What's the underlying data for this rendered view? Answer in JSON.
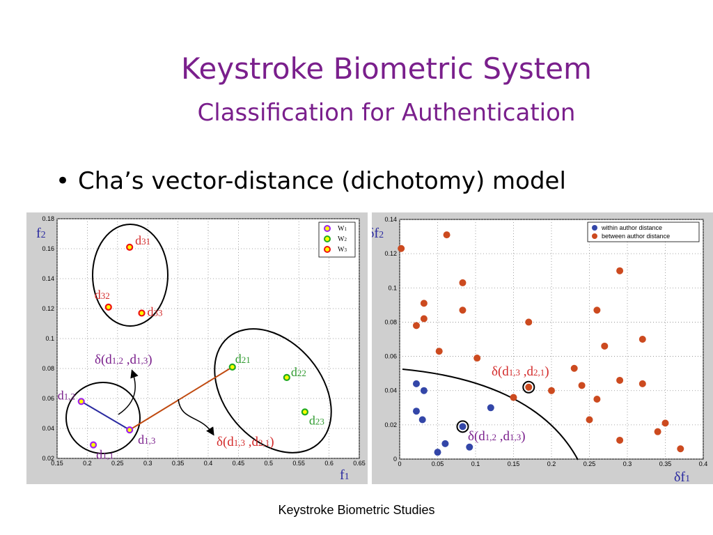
{
  "slide": {
    "title": "Keystroke Biometric System",
    "subtitle": "Classification for Authentication",
    "bullet": "Cha’s vector-distance (dichotomy) model",
    "footer": "Keystroke Biometric Studies"
  },
  "colors": {
    "title": "#7a1f8c",
    "w1_edge": "#a020f0",
    "w2_edge": "#22aa22",
    "w3_edge": "#ee1111",
    "marker_fill": "#ffff00",
    "within": "#3346a8",
    "between": "#cc4a1f",
    "label_purple": "#7a1f8c",
    "label_red": "#d32a2a",
    "label_green": "#2f9a2f",
    "link_blue": "#2a2aa0",
    "link_orange": "#c04a10"
  },
  "chart_data": [
    {
      "type": "scatter",
      "xlabel": "f1",
      "ylabel": "f2",
      "xlim": [
        0.15,
        0.65
      ],
      "ylim": [
        0.02,
        0.18
      ],
      "xticks": [
        "0.15",
        "0.2",
        "0.25",
        "0.3",
        "0.35",
        "0.4",
        "0.45",
        "0.5",
        "0.55",
        "0.6",
        "0.65"
      ],
      "yticks": [
        "0.02",
        "0.04",
        "0.06",
        "0.08",
        "0.1",
        "0.12",
        "0.14",
        "0.16",
        "0.18"
      ],
      "grid": true,
      "legend": "top-right",
      "series": [
        {
          "name": "W1",
          "color_key": "w1_edge",
          "points": [
            [
              0.19,
              0.058
            ],
            [
              0.21,
              0.029
            ],
            [
              0.27,
              0.039
            ]
          ],
          "labels": [
            "d1,2",
            "d1,1",
            "d1,3"
          ]
        },
        {
          "name": "W2",
          "color_key": "w2_edge",
          "points": [
            [
              0.44,
              0.081
            ],
            [
              0.53,
              0.074
            ],
            [
              0.56,
              0.051
            ]
          ],
          "labels": [
            "d21",
            "d22",
            "d23"
          ]
        },
        {
          "name": "W3",
          "color_key": "w3_edge",
          "points": [
            [
              0.27,
              0.161
            ],
            [
              0.235,
              0.121
            ],
            [
              0.29,
              0.117
            ]
          ],
          "labels": [
            "d31",
            "d32",
            "d33"
          ]
        }
      ],
      "annotations": [
        {
          "text": "δ(d1,2 ,d1,3)",
          "parts": [
            [
              "δ(d",
              ""
            ],
            [
              "1,2",
              "sub"
            ],
            [
              " ,d",
              ""
            ],
            [
              "1,3",
              "sub"
            ],
            [
              ")",
              ""
            ]
          ]
        },
        {
          "text": "δ(d1,3 ,d2,1)",
          "parts": [
            [
              "δ(d",
              ""
            ],
            [
              "1,3",
              "sub"
            ],
            [
              " ,d",
              ""
            ],
            [
              "2,1",
              "sub"
            ],
            [
              ")",
              ""
            ]
          ]
        }
      ]
    },
    {
      "type": "scatter",
      "xlabel": "δf1",
      "ylabel": "δf2",
      "xlim": [
        0,
        0.4
      ],
      "ylim": [
        0,
        0.14
      ],
      "xticks": [
        "0",
        "0.05",
        "0.1",
        "0.15",
        "0.2",
        "0.25",
        "0.3",
        "0.35",
        "0.4"
      ],
      "yticks": [
        "0",
        "0.02",
        "0.04",
        "0.06",
        "0.08",
        "0.1",
        "0.12",
        "0.14"
      ],
      "grid": true,
      "legend": "top-right",
      "series": [
        {
          "name": "within author distance",
          "color_key": "within",
          "points": [
            [
              0.022,
              0.044
            ],
            [
              0.032,
              0.04
            ],
            [
              0.022,
              0.028
            ],
            [
              0.03,
              0.023
            ],
            [
              0.12,
              0.03
            ],
            [
              0.083,
              0.019
            ],
            [
              0.06,
              0.009
            ],
            [
              0.05,
              0.004
            ],
            [
              0.092,
              0.007
            ]
          ]
        },
        {
          "name": "between author distance",
          "color_key": "between",
          "points": [
            [
              0.002,
              0.123
            ],
            [
              0.062,
              0.131
            ],
            [
              0.083,
              0.103
            ],
            [
              0.032,
              0.091
            ],
            [
              0.083,
              0.087
            ],
            [
              0.032,
              0.082
            ],
            [
              0.022,
              0.078
            ],
            [
              0.17,
              0.08
            ],
            [
              0.29,
              0.11
            ],
            [
              0.26,
              0.087
            ],
            [
              0.27,
              0.066
            ],
            [
              0.32,
              0.07
            ],
            [
              0.052,
              0.063
            ],
            [
              0.102,
              0.059
            ],
            [
              0.23,
              0.053
            ],
            [
              0.29,
              0.046
            ],
            [
              0.32,
              0.044
            ],
            [
              0.24,
              0.043
            ],
            [
              0.17,
              0.042
            ],
            [
              0.2,
              0.04
            ],
            [
              0.15,
              0.036
            ],
            [
              0.26,
              0.035
            ],
            [
              0.25,
              0.023
            ],
            [
              0.35,
              0.021
            ],
            [
              0.34,
              0.016
            ],
            [
              0.29,
              0.011
            ],
            [
              0.37,
              0.006
            ]
          ]
        }
      ],
      "annotations": [
        {
          "text": "δ(d1,3 ,d2,1)",
          "parts": [
            [
              "δ(d",
              ""
            ],
            [
              "1,3",
              "sub"
            ],
            [
              " ,d",
              ""
            ],
            [
              "2,1",
              "sub"
            ],
            [
              ")",
              ""
            ]
          ]
        },
        {
          "text": "δ(d1,2 ,d1,3)",
          "parts": [
            [
              "δ(d",
              ""
            ],
            [
              "1,2",
              "sub"
            ],
            [
              " ,d",
              ""
            ],
            [
              "1,3",
              "sub"
            ],
            [
              ")",
              ""
            ]
          ]
        }
      ]
    }
  ]
}
